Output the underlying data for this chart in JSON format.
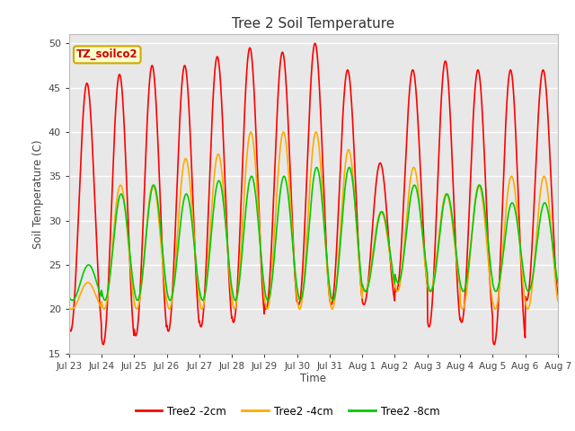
{
  "title": "Tree 2 Soil Temperature",
  "xlabel": "Time",
  "ylabel": "Soil Temperature (C)",
  "ylim": [
    15,
    51
  ],
  "yticks": [
    15,
    20,
    25,
    30,
    35,
    40,
    45,
    50
  ],
  "legend_label": "TZ_soilco2",
  "series_labels": [
    "Tree2 -2cm",
    "Tree2 -4cm",
    "Tree2 -8cm"
  ],
  "series_colors": [
    "#ff0000",
    "#ffaa00",
    "#00cc00"
  ],
  "series_linewidths": [
    1.2,
    1.2,
    1.2
  ],
  "background_color": "#ffffff",
  "plot_bg_color": "#e8e8e8",
  "grid_color": "#ffffff",
  "title_fontsize": 11,
  "tick_dates": [
    "Jul 23",
    "Jul 24",
    "Jul 25",
    "Jul 26",
    "Jul 27",
    "Jul 28",
    "Jul 29",
    "Jul 30",
    "Jul 31",
    "Aug 1",
    "Aug 2",
    "Aug 3",
    "Aug 4",
    "Aug 5",
    "Aug 6",
    "Aug 7"
  ],
  "red_peaks": [
    45.5,
    46.5,
    47.5,
    47.5,
    48.5,
    49.5,
    49.0,
    50.0,
    47.0,
    36.5,
    47.0,
    48.0,
    47.0,
    47.0,
    47.0
  ],
  "red_troughs": [
    17.5,
    16.0,
    17.0,
    17.5,
    18.0,
    18.5,
    20.0,
    20.5,
    20.5,
    20.5,
    22.0,
    18.0,
    18.5,
    16.0,
    21.0
  ],
  "orange_peaks": [
    23.0,
    34.0,
    34.0,
    37.0,
    37.5,
    40.0,
    40.0,
    40.0,
    38.0,
    31.0,
    36.0,
    33.0,
    34.0,
    35.0,
    35.0
  ],
  "orange_troughs": [
    20.0,
    20.0,
    20.0,
    20.0,
    20.0,
    20.0,
    20.0,
    20.0,
    20.0,
    22.0,
    22.0,
    22.0,
    20.0,
    20.0,
    20.0
  ],
  "green_peaks": [
    25.0,
    33.0,
    34.0,
    33.0,
    34.5,
    35.0,
    35.0,
    36.0,
    36.0,
    31.0,
    34.0,
    33.0,
    34.0,
    32.0,
    32.0
  ],
  "green_troughs": [
    21.0,
    21.0,
    21.0,
    21.0,
    21.0,
    21.0,
    21.0,
    21.0,
    21.0,
    22.0,
    23.0,
    22.0,
    22.0,
    22.0,
    22.0
  ],
  "n_days": 15,
  "n_per_day": 96,
  "phase_peak_red": 0.55,
  "phase_peak_orange": 0.58,
  "phase_peak_green": 0.6
}
